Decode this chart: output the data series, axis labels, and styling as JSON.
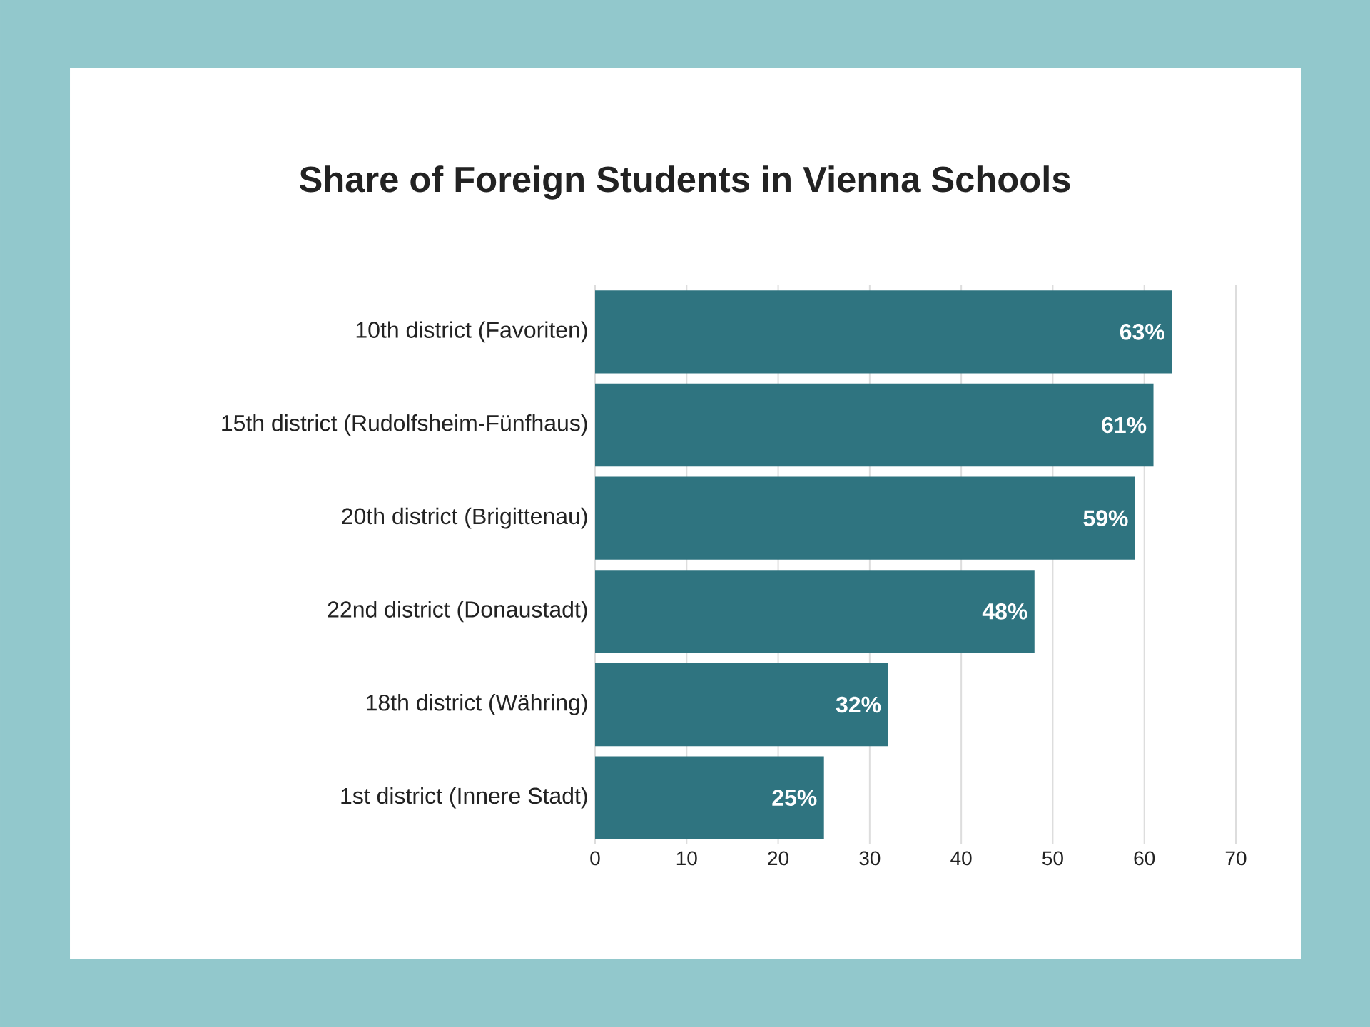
{
  "chart_data": {
    "type": "bar",
    "orientation": "horizontal",
    "title": "Share of Foreign Students in Vienna Schools",
    "categories": [
      "10th district (Favoriten)",
      "15th district (Rudolfsheim-Fünfhaus)",
      "20th district (Brigittenau)",
      "22nd district (Donaustadt)",
      "18th district (Währing)",
      "1st district (Innere Stadt)"
    ],
    "values": [
      63,
      61,
      59,
      48,
      32,
      25
    ],
    "value_labels": [
      "63%",
      "61%",
      "59%",
      "48%",
      "32%",
      "25%"
    ],
    "color": "#2f7480",
    "xlim": [
      0,
      70
    ],
    "xticks": [
      0,
      10,
      20,
      30,
      40,
      50,
      60,
      70
    ],
    "grid": "x"
  }
}
